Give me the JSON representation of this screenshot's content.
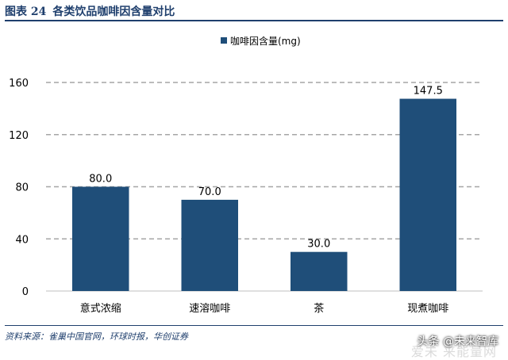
{
  "header": {
    "figure_label": "图表 24",
    "figure_title": "各类饮品咖啡因含量对比"
  },
  "footer": {
    "source": "资料来源：雀巢中国官网，环球时报，华创证券"
  },
  "watermark": {
    "handle": "头条 @未来智库",
    "site": "爱未 来能量网"
  },
  "colors": {
    "bar": "#1f4e79",
    "grid": "#a6a6a6",
    "text": "#000000",
    "header": "#1f3f6d"
  },
  "chart_data": {
    "type": "bar",
    "categories": [
      "意式浓缩",
      "速溶咖啡",
      "茶",
      "现煮咖啡"
    ],
    "series": [
      {
        "name": "咖啡因含量(mg)",
        "values": [
          80.0,
          70.0,
          30.0,
          147.5
        ]
      }
    ],
    "data_labels": [
      "80.0",
      "70.0",
      "30.0",
      "147.5"
    ],
    "yticks": [
      0,
      40,
      80,
      120,
      160
    ],
    "ylim": [
      0,
      160
    ],
    "grid": true,
    "grid_style": "dashed",
    "legend_position": "top-center"
  }
}
